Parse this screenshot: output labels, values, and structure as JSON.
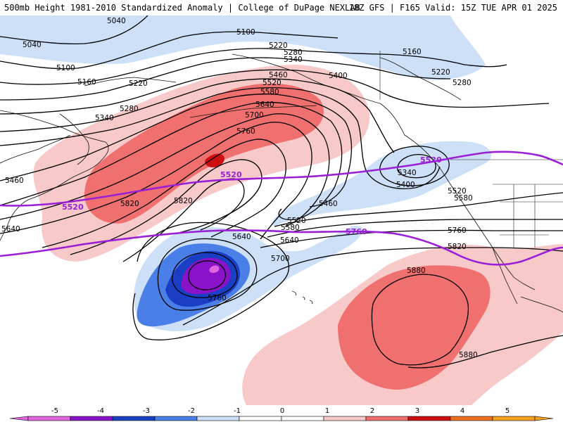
{
  "header": {
    "title_left": "500mb Height 1981-2010 Standardized Anomaly | College of DuPage NEXLAB",
    "title_right": "18Z GFS | F165 Valid: 15Z TUE APR 01 2025"
  },
  "colors": {
    "anom_neg5": "#e066e0",
    "anom_neg4": "#8a12c8",
    "anom_neg3": "#1a3fc4",
    "anom_neg2": "#4a7fe8",
    "anom_neg1": "#cde0f7",
    "anom_pos1": "#f7c9c9",
    "anom_pos2": "#f07070",
    "anom_pos3": "#cc1010",
    "highlight_contour": "#9a1fd6"
  },
  "contour_labels": [
    "5040",
    "5040",
    "5100",
    "5100",
    "5160",
    "5160",
    "5220",
    "5220",
    "5220",
    "5280",
    "5280",
    "5280",
    "5340",
    "5340",
    "5340",
    "5400",
    "5400",
    "5460",
    "5460",
    "5460",
    "5520",
    "5520",
    "5520",
    "5580",
    "5580",
    "5580",
    "5640",
    "5640",
    "5640",
    "5640",
    "5700",
    "5700",
    "5760",
    "5760",
    "5760",
    "5820",
    "5820",
    "5820",
    "5880",
    "5880"
  ],
  "highlight_labels": [
    "5520",
    "5520",
    "5760"
  ],
  "colorbar": {
    "ticks": [
      "-5",
      "-4",
      "-3",
      "-2",
      "-1",
      "0",
      "1",
      "2",
      "3",
      "4",
      "5"
    ],
    "segment_colors": [
      "#e066e0",
      "#8a12c8",
      "#1a3fc4",
      "#4a7fe8",
      "#cde0f7",
      "#ffffff",
      "#ffffff",
      "#f7c9c9",
      "#f07070",
      "#cc1010",
      "#ee7020",
      "#f5a020"
    ]
  }
}
